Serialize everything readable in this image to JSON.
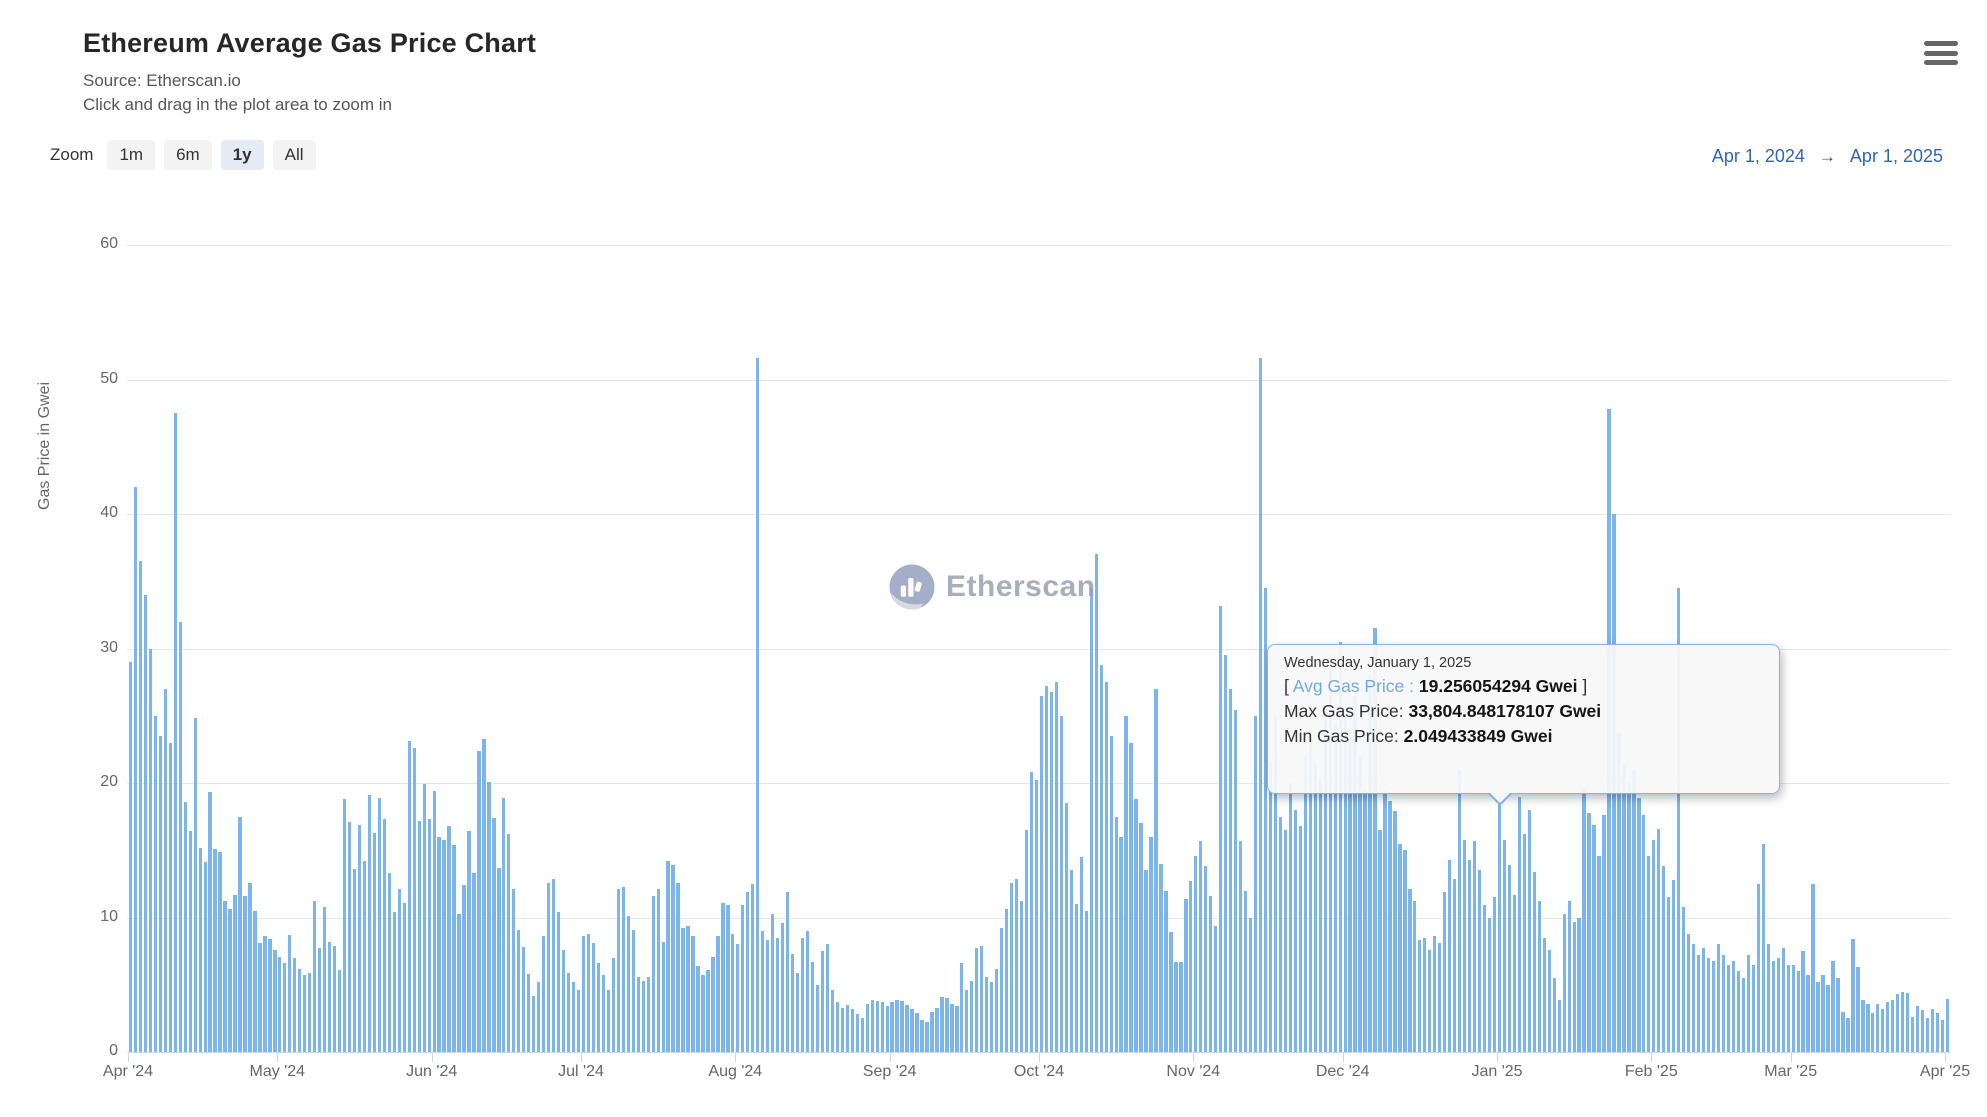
{
  "header": {
    "title": "Ethereum Average Gas Price Chart",
    "source_line": "Source: Etherscan.io",
    "hint_line": "Click and drag in the plot area to zoom in"
  },
  "menu": {
    "icon": "hamburger-menu-icon"
  },
  "toolbar": {
    "zoom_label": "Zoom",
    "buttons": [
      {
        "label": "1m",
        "selected": false
      },
      {
        "label": "6m",
        "selected": false
      },
      {
        "label": "1y",
        "selected": true
      },
      {
        "label": "All",
        "selected": false
      }
    ]
  },
  "range_selector": {
    "from": "Apr 1, 2024",
    "arrow": "→",
    "to": "Apr 1, 2025"
  },
  "watermark": {
    "logo": "etherscan-logo",
    "text": "Etherscan"
  },
  "tooltip": {
    "date": "Wednesday, January 1, 2025",
    "open_bracket": "[ ",
    "avg_label": "Avg Gas Price : ",
    "avg_value": "19.256054294 Gwei",
    "close_bracket": " ]",
    "max_label": "Max Gas Price: ",
    "max_value": "33,804.848178107 Gwei",
    "min_label": "Min Gas Price: ",
    "min_value": "2.049433849 Gwei"
  },
  "chart_data": {
    "type": "bar",
    "title": "Ethereum Average Gas Price Chart",
    "xlabel": "",
    "ylabel": "Gas Price in Gwei",
    "ylim": [
      0,
      60
    ],
    "yticks": [
      0,
      10,
      20,
      30,
      40,
      50,
      60
    ],
    "grid": true,
    "bar_color": "#7cb5ec",
    "x_start_date": "Apr 1, 2024",
    "x_end_date": "Apr 1, 2025",
    "month_tick_day_offsets": [
      0,
      30,
      61,
      91,
      122,
      153,
      183,
      214,
      244,
      275,
      306,
      334,
      365
    ],
    "month_tick_labels": [
      "Apr '24",
      "May '24",
      "Jun '24",
      "Jul '24",
      "Aug '24",
      "Sep '24",
      "Oct '24",
      "Nov '24",
      "Dec '24",
      "Jan '25",
      "Feb '25",
      "Mar '25",
      "Apr '25"
    ],
    "hover_index": 275,
    "hover_point": {
      "date": "Wednesday, January 1, 2025",
      "avg": 19.256054294,
      "max": 33804.848178107,
      "min": 2.049433849
    },
    "values": [
      29,
      42,
      36.5,
      34,
      30,
      25,
      23.5,
      27,
      23,
      47.5,
      32,
      18.6,
      16.4,
      24.8,
      15.2,
      14.1,
      19.3,
      15.1,
      14.9,
      11.2,
      10.6,
      11.7,
      17.5,
      11.6,
      12.6,
      10.5,
      8.1,
      8.6,
      8.4,
      7.6,
      7.1,
      6.6,
      8.7,
      7.0,
      6.2,
      5.7,
      5.9,
      11.2,
      7.7,
      10.8,
      8.2,
      7.9,
      6.1,
      18.8,
      17.1,
      13.6,
      16.9,
      14.2,
      19.1,
      16.3,
      18.9,
      17.3,
      13.3,
      10.4,
      12.1,
      11.1,
      23.1,
      22.6,
      17.2,
      19.9,
      17.3,
      19.4,
      16.0,
      15.8,
      16.8,
      15.4,
      10.3,
      12.4,
      16.4,
      13.3,
      22.4,
      23.3,
      20.1,
      17.4,
      13.7,
      18.9,
      16.2,
      12.1,
      9.1,
      7.8,
      5.8,
      4.2,
      5.2,
      8.6,
      12.6,
      12.9,
      10.4,
      7.6,
      5.9,
      5.2,
      4.6,
      8.6,
      8.8,
      8.1,
      6.6,
      5.7,
      4.6,
      7.0,
      12.1,
      12.3,
      10.1,
      9.1,
      5.6,
      5.3,
      5.6,
      11.6,
      12.1,
      8.2,
      14.2,
      13.9,
      12.6,
      9.2,
      9.4,
      8.6,
      6.4,
      5.7,
      6.1,
      7.1,
      8.6,
      11.1,
      10.9,
      8.8,
      8.0,
      10.9,
      11.9,
      12.5,
      51.6,
      9.0,
      8.3,
      10.3,
      8.5,
      9.6,
      11.9,
      7.3,
      5.9,
      8.5,
      9.0,
      6.7,
      5.0,
      7.5,
      8.0,
      4.6,
      3.7,
      3.3,
      3.5,
      3.2,
      2.8,
      2.5,
      3.6,
      3.9,
      3.8,
      3.7,
      3.4,
      3.7,
      3.9,
      3.8,
      3.5,
      3.2,
      2.9,
      2.4,
      2.2,
      3.0,
      3.3,
      4.1,
      4.0,
      3.6,
      3.4,
      6.6,
      4.6,
      5.3,
      7.7,
      7.9,
      5.6,
      5.2,
      6.2,
      9.2,
      10.6,
      12.6,
      12.9,
      11.2,
      16.5,
      20.8,
      20.2,
      26.5,
      27.2,
      26.8,
      27.5,
      25.0,
      18.5,
      13.5,
      11.0,
      14.5,
      10.5,
      34.5,
      37.0,
      28.8,
      27.5,
      23.5,
      17.5,
      16.0,
      25.0,
      23.0,
      18.8,
      17.0,
      13.5,
      16.0,
      27.0,
      14.0,
      12.0,
      8.9,
      6.7,
      6.7,
      11.4,
      12.7,
      14.6,
      15.7,
      13.8,
      11.6,
      9.4,
      33.2,
      29.5,
      27.0,
      25.4,
      15.7,
      12.0,
      10.0,
      25.0,
      51.6,
      34.5,
      21.5,
      25.0,
      17.5,
      16.5,
      20.0,
      18.0,
      16.8,
      22.0,
      24.0,
      21.5,
      20.3,
      25.5,
      29.5,
      24.5,
      30.5,
      25.0,
      23.4,
      26.5,
      22.0,
      19.5,
      28.0,
      31.5,
      16.5,
      19.4,
      18.7,
      17.9,
      15.5,
      15.0,
      12.1,
      11.2,
      8.3,
      8.5,
      7.6,
      8.6,
      8.1,
      11.9,
      14.3,
      12.9,
      21.0,
      15.8,
      14.3,
      15.7,
      13.5,
      10.9,
      10.0,
      11.5,
      19.256054294,
      15.8,
      13.9,
      11.7,
      19.0,
      16.2,
      18.0,
      13.4,
      11.2,
      8.5,
      7.6,
      5.5,
      3.9,
      10.3,
      11.2,
      9.7,
      10.0,
      19.6,
      17.8,
      16.9,
      14.6,
      17.6,
      47.8,
      40.0,
      23.7,
      21.4,
      20.1,
      20.9,
      18.9,
      17.6,
      14.6,
      15.8,
      16.6,
      13.8,
      11.5,
      12.8,
      34.5,
      10.8,
      8.8,
      8.0,
      7.2,
      7.7,
      7.0,
      6.8,
      8.0,
      7.2,
      6.5,
      6.8,
      6.0,
      5.5,
      7.2,
      6.5,
      12.5,
      15.5,
      8.0,
      6.8,
      7.0,
      7.7,
      6.5,
      6.5,
      6.0,
      7.5,
      5.7,
      12.5,
      5.2,
      5.7,
      5.0,
      6.8,
      5.5,
      3.0,
      2.5,
      8.4,
      6.3,
      3.9,
      3.6,
      2.9,
      3.6,
      3.2,
      3.7,
      3.9,
      4.3,
      4.5,
      4.4,
      2.6,
      3.4,
      3.1,
      2.5,
      3.2,
      2.9,
      2.4,
      3.95
    ]
  }
}
